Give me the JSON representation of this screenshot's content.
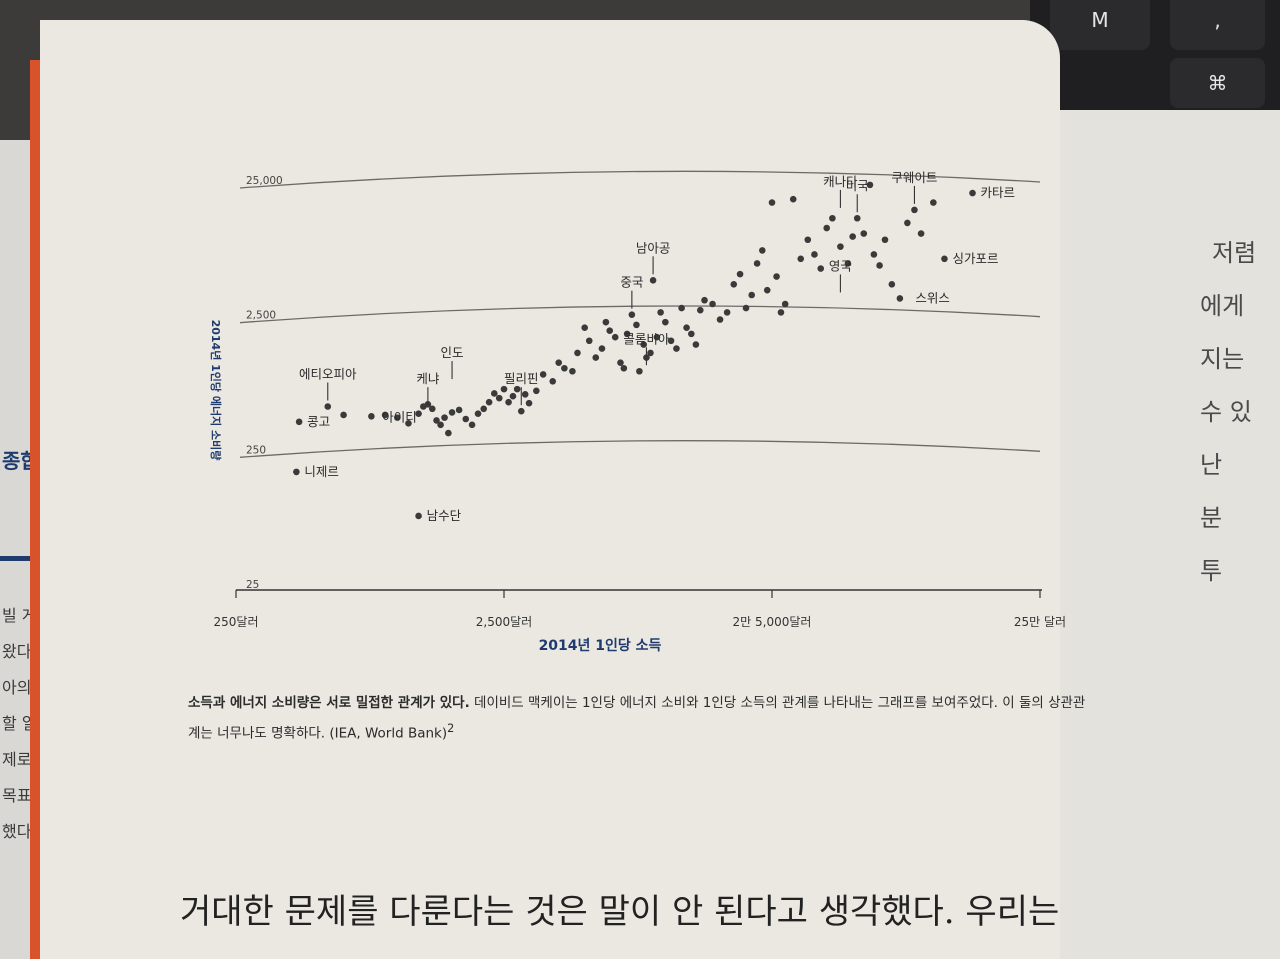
{
  "keyboard": {
    "keys": [
      "M",
      ",",
      "⌘"
    ]
  },
  "left_page": {
    "heading": "종합",
    "lines": [
      "빌 게이",
      "왔다. ",
      "아의 ",
      "할 일",
      "제로",
      "목표",
      "했다."
    ]
  },
  "right_page": {
    "lines": [
      "저렴",
      "에게 ",
      "지는 ",
      "수 있",
      "난",
      "분",
      "투"
    ]
  },
  "chart_data": {
    "type": "scatter",
    "title": "",
    "xlabel": "2014년 1인당 소득",
    "ylabel": "2014년 1인당 에너지 소비량",
    "x_scale": "log",
    "y_scale": "log",
    "x_ticks": [
      {
        "value": 250,
        "label": "250달러"
      },
      {
        "value": 2500,
        "label": "2,500달러"
      },
      {
        "value": 25000,
        "label": "2만 5,000달러"
      },
      {
        "value": 250000,
        "label": "25만 달러"
      }
    ],
    "y_ticks": [
      {
        "value": 25,
        "label": "25"
      },
      {
        "value": 250,
        "label": "250"
      },
      {
        "value": 2500,
        "label": "2,500"
      },
      {
        "value": 25000,
        "label": "25,000"
      }
    ],
    "grid": "horizontal curves",
    "annotations": [
      {
        "label": "미국",
        "x": 52000,
        "y": 13000,
        "arrow": true
      },
      {
        "label": "카타르",
        "x": 140000,
        "y": 20000
      },
      {
        "label": "쿠웨이트",
        "x": 85000,
        "y": 15000,
        "arrow": true
      },
      {
        "label": "캐나다",
        "x": 45000,
        "y": 14000,
        "arrow": true
      },
      {
        "label": "싱가포르",
        "x": 110000,
        "y": 6500
      },
      {
        "label": "스위스",
        "x": 80000,
        "y": 3300
      },
      {
        "label": "영국",
        "x": 45000,
        "y": 3300,
        "arrow": true
      },
      {
        "label": "남아공",
        "x": 9000,
        "y": 4500,
        "arrow": true
      },
      {
        "label": "중국",
        "x": 7500,
        "y": 2500,
        "arrow": true
      },
      {
        "label": "콜롬비아",
        "x": 8500,
        "y": 950,
        "arrow": true
      },
      {
        "label": "인도",
        "x": 1600,
        "y": 750,
        "arrow": true
      },
      {
        "label": "필리핀",
        "x": 2900,
        "y": 480,
        "arrow": true
      },
      {
        "label": "케냐",
        "x": 1300,
        "y": 480,
        "arrow": true
      },
      {
        "label": "에티오피아",
        "x": 550,
        "y": 520,
        "arrow": true
      },
      {
        "label": "아이티",
        "x": 820,
        "y": 430
      },
      {
        "label": "콩고",
        "x": 430,
        "y": 400
      },
      {
        "label": "니제르",
        "x": 420,
        "y": 170
      },
      {
        "label": "남수단",
        "x": 1200,
        "y": 80
      }
    ],
    "points": [
      [
        430,
        400
      ],
      [
        420,
        170
      ],
      [
        1200,
        80
      ],
      [
        550,
        520
      ],
      [
        630,
        450
      ],
      [
        800,
        440
      ],
      [
        900,
        450
      ],
      [
        1000,
        430
      ],
      [
        1100,
        390
      ],
      [
        1200,
        460
      ],
      [
        1250,
        520
      ],
      [
        1300,
        540
      ],
      [
        1350,
        500
      ],
      [
        1400,
        410
      ],
      [
        1450,
        380
      ],
      [
        1500,
        430
      ],
      [
        1550,
        330
      ],
      [
        1600,
        470
      ],
      [
        1700,
        490
      ],
      [
        1800,
        420
      ],
      [
        1900,
        380
      ],
      [
        2000,
        460
      ],
      [
        2100,
        500
      ],
      [
        2200,
        560
      ],
      [
        2300,
        650
      ],
      [
        2400,
        600
      ],
      [
        2500,
        700
      ],
      [
        2600,
        560
      ],
      [
        2700,
        620
      ],
      [
        2800,
        700
      ],
      [
        2900,
        480
      ],
      [
        3000,
        640
      ],
      [
        3100,
        550
      ],
      [
        3300,
        680
      ],
      [
        3500,
        900
      ],
      [
        3800,
        800
      ],
      [
        4000,
        1100
      ],
      [
        4200,
        1000
      ],
      [
        4500,
        950
      ],
      [
        4700,
        1300
      ],
      [
        5000,
        2000
      ],
      [
        5200,
        1600
      ],
      [
        5500,
        1200
      ],
      [
        5800,
        1400
      ],
      [
        6000,
        2200
      ],
      [
        6200,
        1900
      ],
      [
        6500,
        1700
      ],
      [
        6800,
        1100
      ],
      [
        7000,
        1000
      ],
      [
        7200,
        1800
      ],
      [
        7500,
        2500
      ],
      [
        7800,
        2100
      ],
      [
        8000,
        950
      ],
      [
        8300,
        1500
      ],
      [
        8500,
        1200
      ],
      [
        8800,
        1300
      ],
      [
        9000,
        4500
      ],
      [
        9300,
        1700
      ],
      [
        9600,
        2600
      ],
      [
        10000,
        2200
      ],
      [
        10500,
        1600
      ],
      [
        11000,
        1400
      ],
      [
        11500,
        2800
      ],
      [
        12000,
        2000
      ],
      [
        12500,
        1800
      ],
      [
        13000,
        1500
      ],
      [
        13500,
        2700
      ],
      [
        14000,
        3200
      ],
      [
        15000,
        3000
      ],
      [
        16000,
        2300
      ],
      [
        17000,
        2600
      ],
      [
        18000,
        4200
      ],
      [
        19000,
        5000
      ],
      [
        20000,
        2800
      ],
      [
        21000,
        3500
      ],
      [
        22000,
        6000
      ],
      [
        23000,
        7500
      ],
      [
        24000,
        3800
      ],
      [
        25000,
        17000
      ],
      [
        26000,
        4800
      ],
      [
        27000,
        2600
      ],
      [
        28000,
        3000
      ],
      [
        30000,
        18000
      ],
      [
        32000,
        6500
      ],
      [
        34000,
        9000
      ],
      [
        36000,
        7000
      ],
      [
        38000,
        5500
      ],
      [
        40000,
        11000
      ],
      [
        42000,
        13000
      ],
      [
        45000,
        8000
      ],
      [
        48000,
        6000
      ],
      [
        50000,
        9500
      ],
      [
        52000,
        13000
      ],
      [
        55000,
        10000
      ],
      [
        58000,
        23000
      ],
      [
        60000,
        7000
      ],
      [
        63000,
        5800
      ],
      [
        66000,
        9000
      ],
      [
        70000,
        4200
      ],
      [
        75000,
        3300
      ],
      [
        80000,
        12000
      ],
      [
        85000,
        15000
      ],
      [
        90000,
        10000
      ],
      [
        100000,
        17000
      ],
      [
        110000,
        6500
      ],
      [
        140000,
        20000
      ]
    ]
  },
  "caption": {
    "bold": "소득과 에너지 소비량은 서로 밀접한 관계가 있다.",
    "text": " 데이비드 맥케이는 1인당 에너지 소비와 1인당 소득의 관계를 나타내는 그래프를 보여주었다. 이 둘의 상관관계는 너무나도 명확하다. (IEA, World Bank)",
    "footnote": "2"
  },
  "body_text": "거대한 문제를 다룬다는 것은 말이 안 된다고 생각했다. 우리는"
}
